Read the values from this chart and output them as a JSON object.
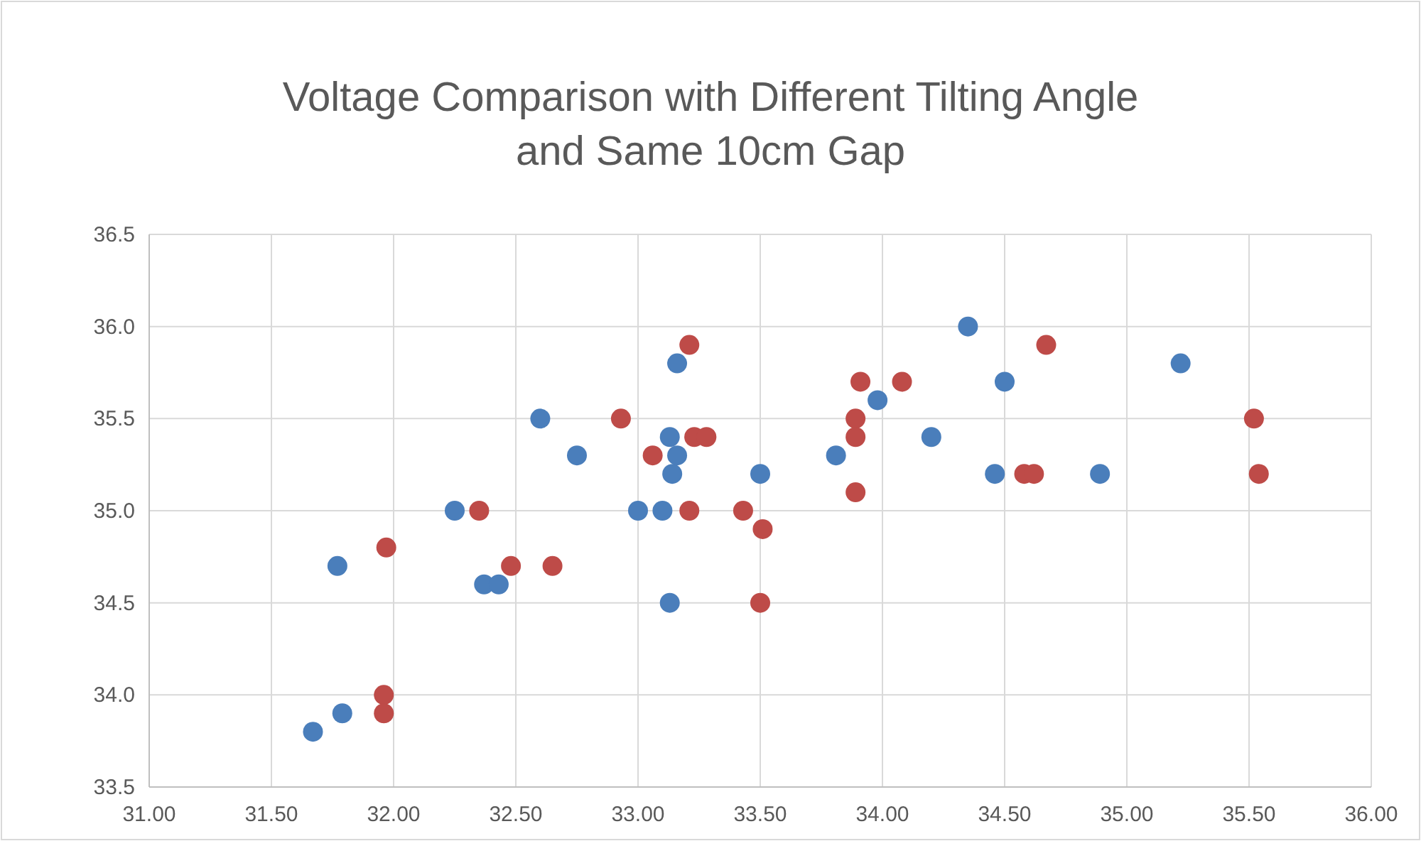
{
  "chart_data": {
    "type": "scatter",
    "title": "Voltage Comparison with Different Tilting Angle and Same 10cm Gap",
    "xlim": [
      31,
      36
    ],
    "ylim": [
      33.5,
      36.5
    ],
    "xticks": [
      {
        "value": 31,
        "label": "31.00"
      },
      {
        "value": 31.5,
        "label": "31.50"
      },
      {
        "value": 32,
        "label": "32.00"
      },
      {
        "value": 32.5,
        "label": "32.50"
      },
      {
        "value": 33,
        "label": "33.00"
      },
      {
        "value": 33.5,
        "label": "33.50"
      },
      {
        "value": 34,
        "label": "34.00"
      },
      {
        "value": 34.5,
        "label": "34.50"
      },
      {
        "value": 35,
        "label": "35.00"
      },
      {
        "value": 35.5,
        "label": "35.50"
      },
      {
        "value": 36,
        "label": "36.00"
      }
    ],
    "yticks": [
      33.5,
      {
        "value": 34,
        "label": "34.0"
      },
      34.5,
      {
        "value": 35,
        "label": "35.0"
      },
      35.5,
      {
        "value": 36,
        "label": "36.0"
      },
      36.5
    ],
    "grid": true,
    "marker": "circle",
    "series": [
      {
        "color": "#4a7ebb",
        "x": [
          32.6,
          32.75,
          32.25,
          31.77,
          32.37,
          32.43,
          31.79,
          31.67,
          34.35,
          33.16,
          33.13,
          33.16,
          33.14,
          33.0,
          33.1,
          33.13,
          33.5,
          33.81,
          33.98,
          34.2,
          34.5,
          34.46,
          34.89,
          35.22
        ],
        "values": [
          35.5,
          35.3,
          35.0,
          34.7,
          34.6,
          34.6,
          33.9,
          33.8,
          36.0,
          35.8,
          35.4,
          35.3,
          35.2,
          35.0,
          35.0,
          34.5,
          35.2,
          35.3,
          35.6,
          35.4,
          35.7,
          35.2,
          35.2,
          35.8
        ]
      },
      {
        "color": "#be4b48",
        "x": [
          32.35,
          31.97,
          32.48,
          32.65,
          31.96,
          31.96,
          33.21,
          32.93,
          33.06,
          33.23,
          33.28,
          33.21,
          33.43,
          33.51,
          33.5,
          33.91,
          34.08,
          33.89,
          33.89,
          33.89,
          34.67,
          34.58,
          34.62,
          35.52,
          35.54
        ],
        "values": [
          35.0,
          34.8,
          34.7,
          34.7,
          34.0,
          33.9,
          35.9,
          35.5,
          35.3,
          35.4,
          35.4,
          35.0,
          35.0,
          34.9,
          34.5,
          35.7,
          35.7,
          35.5,
          35.4,
          35.1,
          35.9,
          35.2,
          35.2,
          35.5,
          35.2
        ]
      }
    ]
  }
}
